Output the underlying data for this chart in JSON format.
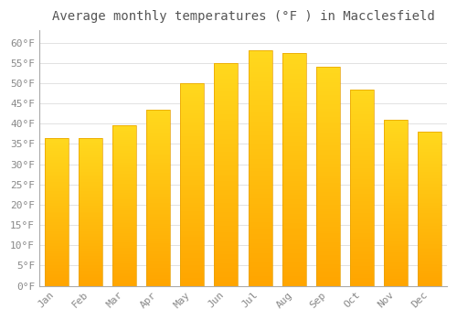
{
  "title": "Average monthly temperatures (°F ) in Macclesfield",
  "months": [
    "Jan",
    "Feb",
    "Mar",
    "Apr",
    "May",
    "Jun",
    "Jul",
    "Aug",
    "Sep",
    "Oct",
    "Nov",
    "Dec"
  ],
  "values": [
    36.5,
    36.5,
    39.5,
    43.5,
    50,
    55,
    58,
    57.5,
    54,
    48.5,
    41,
    38
  ],
  "bar_color_top": "#FFD966",
  "bar_color_bottom": "#FFA500",
  "bar_edge_color": "#E8A000",
  "background_color": "#FFFFFF",
  "grid_color": "#DDDDDD",
  "ylim": [
    0,
    63
  ],
  "yticks": [
    0,
    5,
    10,
    15,
    20,
    25,
    30,
    35,
    40,
    45,
    50,
    55,
    60
  ],
  "title_fontsize": 10,
  "tick_fontsize": 8,
  "tick_label_color": "#888888",
  "title_color": "#555555",
  "font_family": "monospace",
  "axis_color": "#AAAAAA"
}
